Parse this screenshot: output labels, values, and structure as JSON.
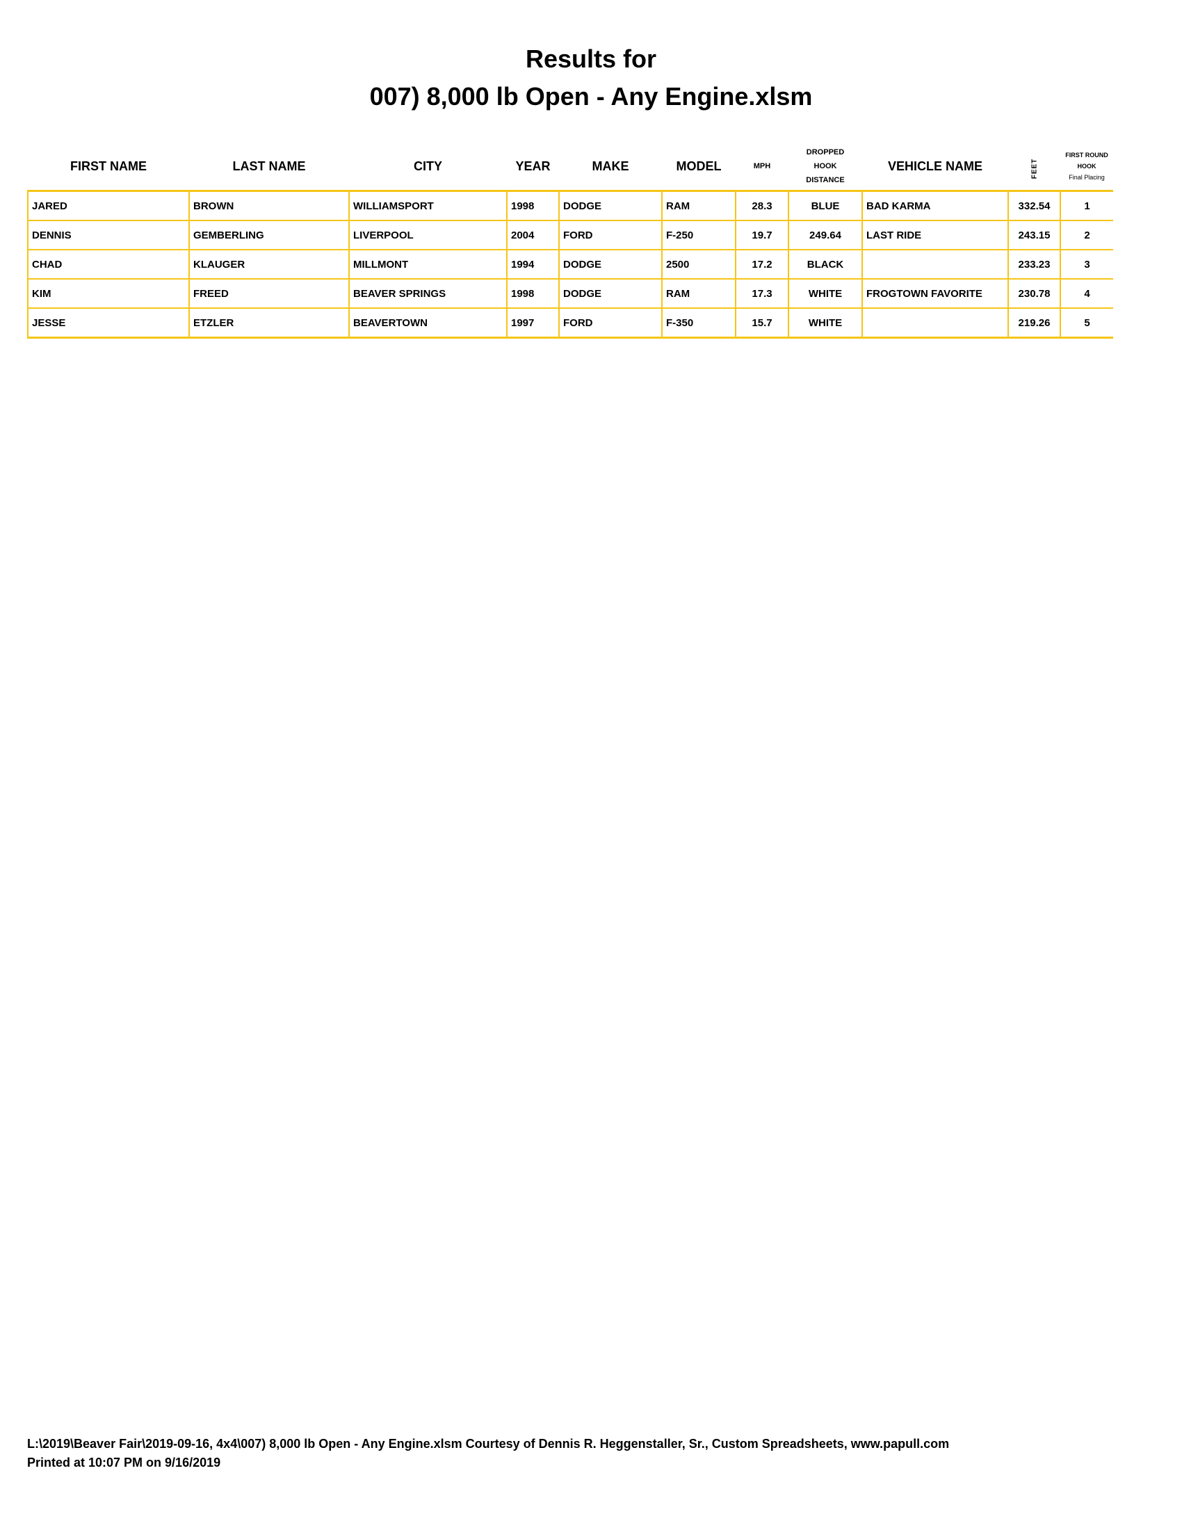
{
  "title_line1": "Results for",
  "title_line2": "007) 8,000 lb Open - Any Engine.xlsm",
  "headers": {
    "first_name": "FIRST NAME",
    "last_name": "LAST NAME",
    "city": "CITY",
    "year": "YEAR",
    "make": "MAKE",
    "model": "MODEL",
    "mph": "MPH",
    "dropped_1": "DROPPED",
    "dropped_2": "HOOK",
    "dropped_3": "DISTANCE",
    "vehicle_name": "VEHICLE NAME",
    "feet": "FEET",
    "frh_1": "FIRST ROUND",
    "frh_2": "HOOK",
    "frh_3": "Final Placing"
  },
  "rows": [
    {
      "first": "JARED",
      "last": "BROWN",
      "city": "WILLIAMSPORT",
      "year": "1998",
      "make": "DODGE",
      "model": "RAM",
      "mph": "28.3",
      "dropped": "BLUE",
      "vehicle": "BAD KARMA",
      "feet": "332.54",
      "place": "1"
    },
    {
      "first": "DENNIS",
      "last": "GEMBERLING",
      "city": "LIVERPOOL",
      "year": "2004",
      "make": "FORD",
      "model": "F-250",
      "mph": "19.7",
      "dropped": "249.64",
      "vehicle": "LAST RIDE",
      "feet": "243.15",
      "place": "2"
    },
    {
      "first": "CHAD",
      "last": "KLAUGER",
      "city": "MILLMONT",
      "year": "1994",
      "make": "DODGE",
      "model": "2500",
      "mph": "17.2",
      "dropped": "BLACK",
      "vehicle": "",
      "feet": "233.23",
      "place": "3"
    },
    {
      "first": "KIM",
      "last": "FREED",
      "city": "BEAVER SPRINGS",
      "year": "1998",
      "make": "DODGE",
      "model": "RAM",
      "mph": "17.3",
      "dropped": "WHITE",
      "vehicle": "FROGTOWN FAVORITE",
      "feet": "230.78",
      "place": "4"
    },
    {
      "first": "JESSE",
      "last": "ETZLER",
      "city": "BEAVERTOWN",
      "year": "1997",
      "make": "FORD",
      "model": "F-350",
      "mph": "15.7",
      "dropped": "WHITE",
      "vehicle": "",
      "feet": "219.26",
      "place": "5"
    }
  ],
  "footer_line1": "L:\\2019\\Beaver Fair\\2019-09-16, 4x4\\007) 8,000 lb Open - Any Engine.xlsm  Courtesy of Dennis R. Heggenstaller, Sr., Custom Spreadsheets, www.papull.com",
  "footer_line2": "Printed at 10:07 PM on 9/16/2019",
  "colors": {
    "grid": "#f5c518"
  }
}
